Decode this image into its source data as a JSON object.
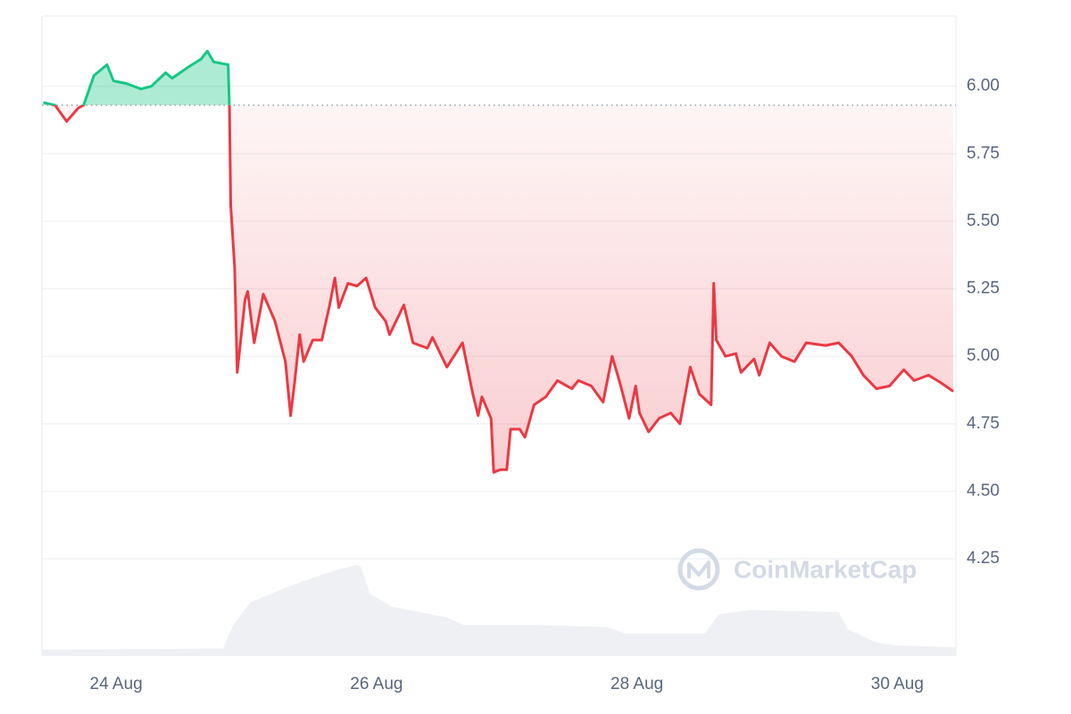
{
  "chart_data": {
    "type": "line",
    "x": [
      23.44,
      23.53,
      23.62,
      23.71,
      23.75,
      23.83,
      23.93,
      23.98,
      24.08,
      24.19,
      24.27,
      24.38,
      24.43,
      24.55,
      24.65,
      24.7,
      24.75,
      24.86,
      24.87,
      24.88,
      24.91,
      24.93,
      24.99,
      25.01,
      25.06,
      25.13,
      25.22,
      25.3,
      25.34,
      25.37,
      25.41,
      25.44,
      25.51,
      25.58,
      25.64,
      25.68,
      25.71,
      25.78,
      25.85,
      25.92,
      25.99,
      26.07,
      26.1,
      26.21,
      26.28,
      26.39,
      26.43,
      26.54,
      26.66,
      26.74,
      26.78,
      26.81,
      26.88,
      26.9,
      26.95,
      27.0,
      27.03,
      27.1,
      27.14,
      27.21,
      27.3,
      27.39,
      27.5,
      27.55,
      27.65,
      27.74,
      27.81,
      27.87,
      27.94,
      27.99,
      28.02,
      28.09,
      28.17,
      28.26,
      28.33,
      28.41,
      28.48,
      28.57,
      28.59,
      28.61,
      28.68,
      28.76,
      28.8,
      28.9,
      28.94,
      29.02,
      29.11,
      29.21,
      29.3,
      29.45,
      29.55,
      29.65,
      29.74,
      29.84,
      29.94,
      30.05,
      30.13,
      30.24,
      30.34,
      30.43
    ],
    "values": [
      5.94,
      5.93,
      5.87,
      5.92,
      5.93,
      6.04,
      6.08,
      6.02,
      6.01,
      5.99,
      6.0,
      6.05,
      6.03,
      6.07,
      6.1,
      6.13,
      6.09,
      6.08,
      5.92,
      5.56,
      5.33,
      4.94,
      5.21,
      5.24,
      5.05,
      5.23,
      5.13,
      4.98,
      4.78,
      4.9,
      5.08,
      4.98,
      5.06,
      5.06,
      5.19,
      5.29,
      5.18,
      5.27,
      5.26,
      5.29,
      5.18,
      5.13,
      5.08,
      5.19,
      5.05,
      5.03,
      5.07,
      4.96,
      5.05,
      4.86,
      4.78,
      4.85,
      4.77,
      4.57,
      4.58,
      4.58,
      4.73,
      4.73,
      4.7,
      4.82,
      4.85,
      4.91,
      4.88,
      4.91,
      4.89,
      4.83,
      5.0,
      4.9,
      4.77,
      4.89,
      4.79,
      4.72,
      4.77,
      4.79,
      4.75,
      4.96,
      4.86,
      4.82,
      5.27,
      5.06,
      5.0,
      5.01,
      4.94,
      4.99,
      4.93,
      5.05,
      5.0,
      4.98,
      5.05,
      5.04,
      5.05,
      5.0,
      4.93,
      4.88,
      4.89,
      4.95,
      4.91,
      4.93,
      4.9,
      4.87
    ],
    "baseline": 5.93,
    "color_up": "#16c784",
    "color_down": "#ea3943",
    "xlim": [
      23.43,
      30.45
    ],
    "xticks": [
      {
        "value": 24,
        "label": "24 Aug"
      },
      {
        "value": 26,
        "label": "26 Aug"
      },
      {
        "value": 28,
        "label": "28 Aug"
      },
      {
        "value": 30,
        "label": "30 Aug"
      }
    ],
    "ylim": [
      3.89,
      6.26
    ],
    "yticks": [
      {
        "value": 6,
        "label": "6.00"
      },
      5.75,
      {
        "value": 5.5,
        "label": "5.50"
      },
      5.25,
      {
        "value": 5,
        "label": "5.00"
      },
      4.75,
      {
        "value": 4.5,
        "label": "4.50"
      },
      4.25
    ],
    "grid": true,
    "volume": {
      "color": "#eef0f4",
      "ylim": [
        0,
        100
      ],
      "x": [
        23.43,
        24.82,
        24.9,
        25.03,
        25.37,
        25.71,
        25.85,
        25.88,
        25.95,
        26.12,
        26.54,
        26.67,
        27.22,
        27.77,
        27.91,
        28.52,
        28.63,
        28.87,
        29.55,
        29.62,
        29.83,
        29.96,
        30.45
      ],
      "values": [
        6,
        7,
        29,
        50,
        67,
        81,
        85,
        83,
        58,
        46,
        36,
        29,
        29,
        27,
        21,
        21,
        39,
        43,
        41,
        25,
        13,
        10,
        8
      ]
    },
    "watermark": "CoinMarketCap"
  }
}
